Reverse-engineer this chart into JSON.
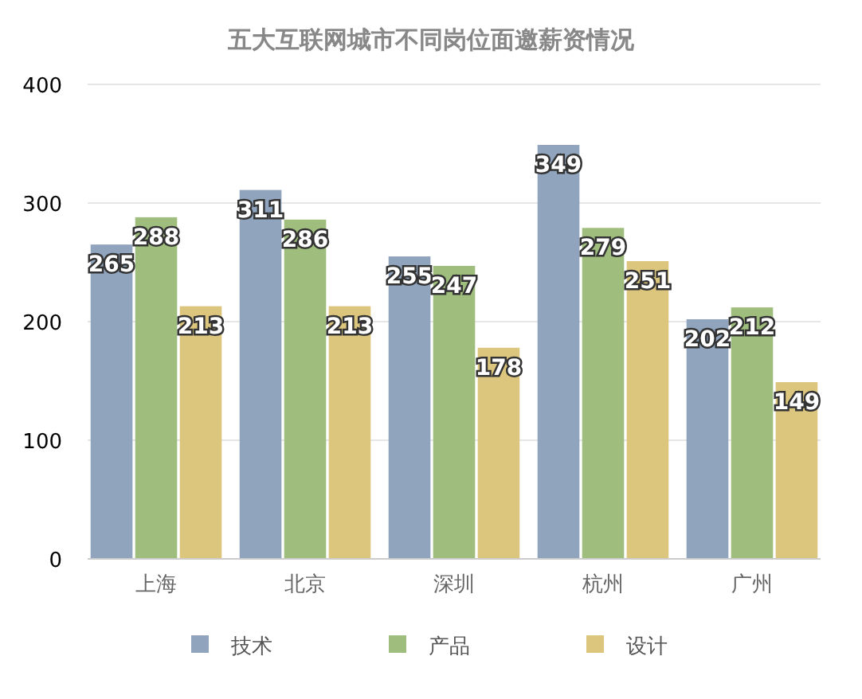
{
  "chart_data": {
    "type": "bar",
    "title": "五大互联网城市不同岗位面邀薪资情况",
    "categories": [
      "上海",
      "北京",
      "深圳",
      "杭州",
      "广州"
    ],
    "series": [
      {
        "name": "技术",
        "color": "#90a4bd",
        "values": [
          265,
          311,
          255,
          349,
          202
        ]
      },
      {
        "name": "产品",
        "color": "#9fbd7c",
        "values": [
          288,
          286,
          247,
          279,
          212
        ]
      },
      {
        "name": "设计",
        "color": "#dcc67e",
        "values": [
          213,
          213,
          178,
          251,
          149
        ]
      }
    ],
    "ylim": [
      0,
      400
    ],
    "yticks": [
      0,
      100,
      200,
      300,
      400
    ],
    "grid": "y",
    "legend": "bottom",
    "data_labels": true
  }
}
